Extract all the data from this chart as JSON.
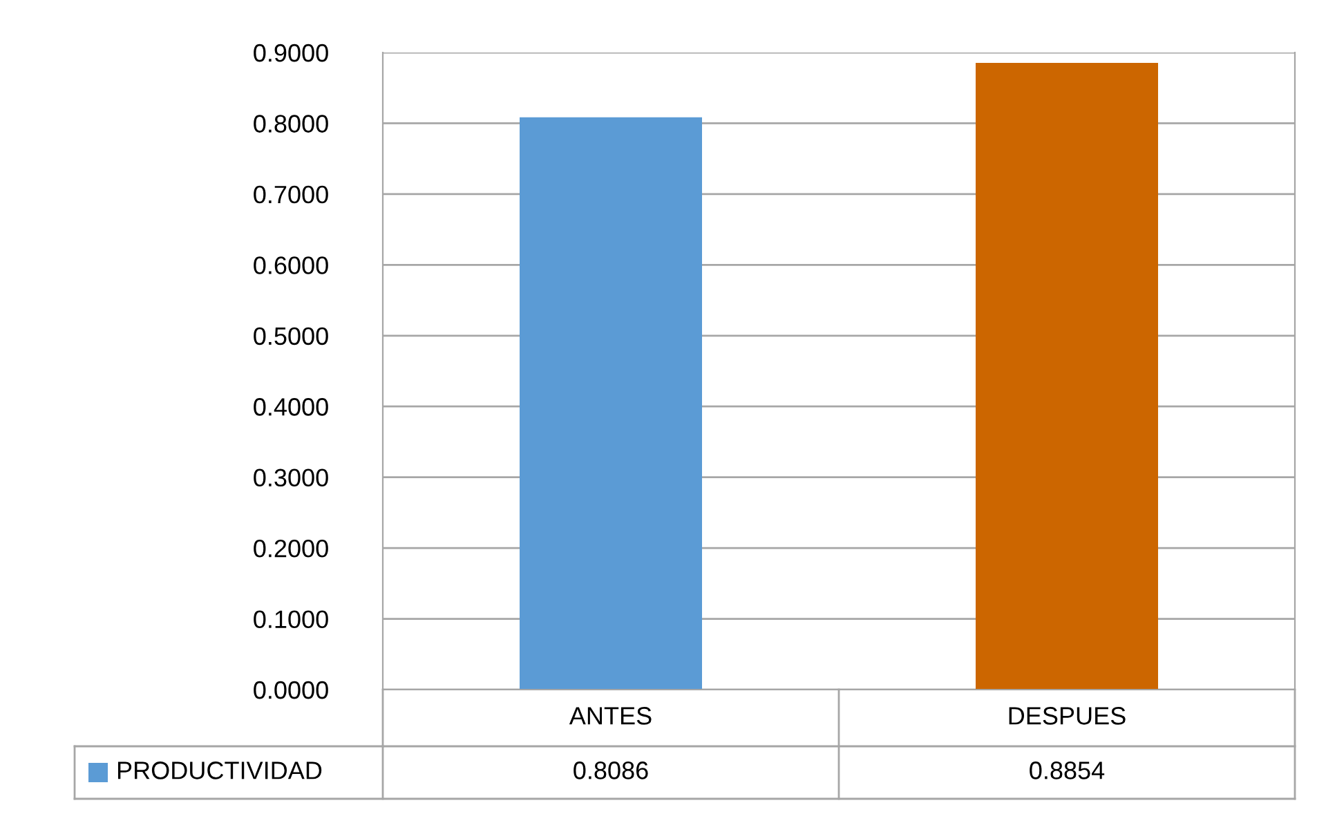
{
  "chart_data": {
    "type": "bar",
    "categories": [
      "ANTES",
      "DESPUES"
    ],
    "series": [
      {
        "name": "PRODUCTIVIDAD",
        "colors": [
          "#5b9bd5",
          "#cc6600"
        ],
        "color": "#5b9bd5",
        "values": [
          0.8086,
          0.8854
        ]
      }
    ],
    "ylim": [
      0,
      0.9
    ],
    "yticks": [
      {
        "value": 0,
        "label": "0.0000"
      },
      {
        "value": 0.1,
        "label": "0.1000"
      },
      {
        "value": 0.2,
        "label": "0.2000"
      },
      {
        "value": 0.3,
        "label": "0.3000"
      },
      {
        "value": 0.4,
        "label": "0.4000"
      },
      {
        "value": 0.5,
        "label": "0.5000"
      },
      {
        "value": 0.6,
        "label": "0.6000"
      },
      {
        "value": 0.7,
        "label": "0.7000"
      },
      {
        "value": 0.8,
        "label": "0.8000"
      },
      {
        "value": 0.9,
        "label": "0.9000"
      }
    ],
    "grid": "y",
    "legend": "bottom left",
    "data_labels": true
  }
}
